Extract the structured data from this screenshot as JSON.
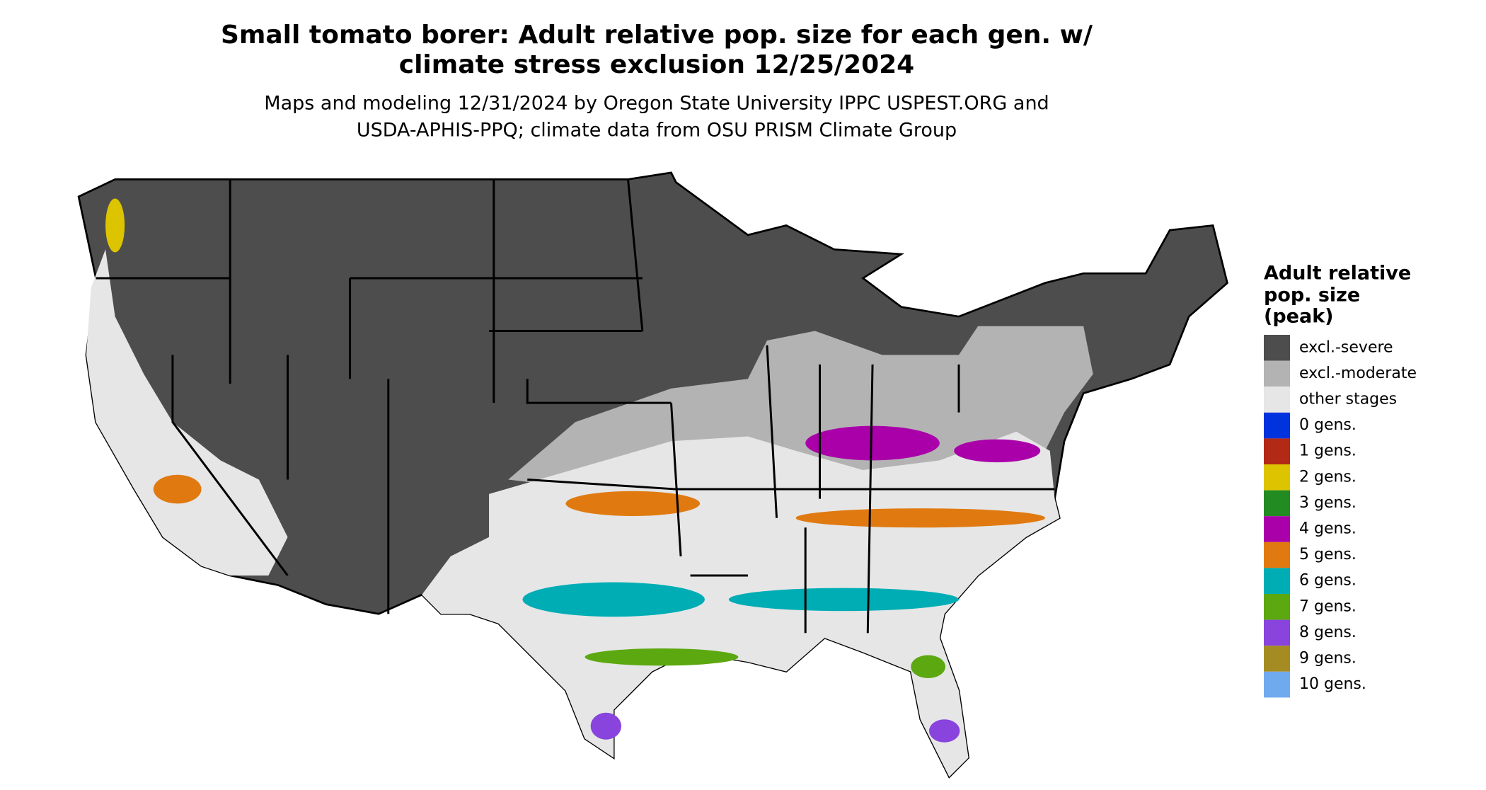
{
  "header": {
    "title": [
      "Small tomato borer: Adult relative pop. size for each gen. w/",
      "climate stress exclusion 12/25/2024"
    ],
    "subtitle": [
      "Maps and modeling 12/31/2024 by Oregon State University IPPC USPEST.ORG and",
      "USDA-APHIS-PPQ; climate data from OSU PRISM Climate Group"
    ]
  },
  "legend": {
    "title": [
      "Adult relative",
      "pop. size",
      "(peak)"
    ],
    "items": [
      {
        "label": "excl.-severe",
        "color": "#4d4d4d"
      },
      {
        "label": "excl.-moderate",
        "color": "#b3b3b3"
      },
      {
        "label": "other stages",
        "color": "#e6e6e6"
      },
      {
        "label": "0 gens.",
        "color": "#0033dd"
      },
      {
        "label": "1 gens.",
        "color": "#b22a16"
      },
      {
        "label": "2 gens.",
        "color": "#ddc400"
      },
      {
        "label": "3 gens.",
        "color": "#228b22"
      },
      {
        "label": "4 gens.",
        "color": "#aa00aa"
      },
      {
        "label": "5 gens.",
        "color": "#e07a10"
      },
      {
        "label": "6 gens.",
        "color": "#00adb5"
      },
      {
        "label": "7 gens.",
        "color": "#5ca810"
      },
      {
        "label": "8 gens.",
        "color": "#8844dd"
      },
      {
        "label": "9 gens.",
        "color": "#a58c22"
      },
      {
        "label": "10 gens.",
        "color": "#70aaee"
      }
    ]
  }
}
